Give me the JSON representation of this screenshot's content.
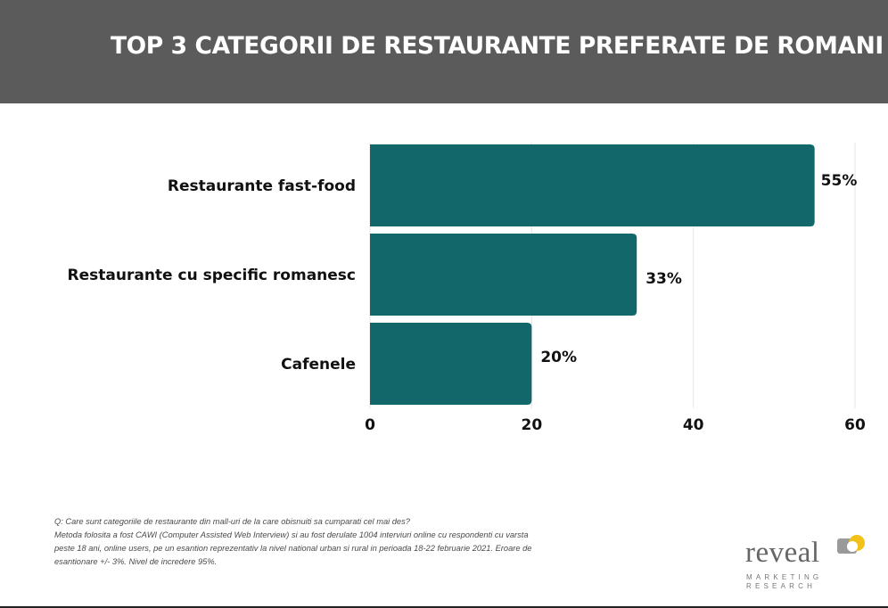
{
  "header": {
    "title": "TOP 3 CATEGORII DE RESTAURANTE PREFERATE DE ROMANI"
  },
  "chart_data": {
    "type": "bar",
    "orientation": "horizontal",
    "title": "TOP 3 CATEGORII DE RESTAURANTE PREFERATE DE ROMANI",
    "categories": [
      "Restaurante fast-food",
      "Restaurante cu specific romanesc",
      "Cafenele"
    ],
    "values": [
      55,
      33,
      20
    ],
    "data_labels": [
      "55%",
      "33%",
      "20%"
    ],
    "xlim": [
      0,
      60
    ],
    "xticks": [
      "0",
      "20",
      "40",
      "60"
    ],
    "xlabel": "",
    "ylabel": "",
    "grid": true,
    "bar_color": "#12676a"
  },
  "footnote": {
    "lines": [
      "Q: Care sunt categoriile de restaurante din mall-uri de la care obisnuiti sa cumparati cel mai des?",
      "Metoda folosita a fost CAWI (Computer Assisted Web Interview) si au fost derulate 1004 interviuri online cu respondenti cu varsta",
      "peste 18 ani, online users, pe un esantion reprezentativ la nivel national urban si rural in perioada 18-22 februarie 2021. Eroare de",
      "esantionare +/- 3%. Nivel de incredere 95%."
    ]
  },
  "logo": {
    "word": "reveal",
    "line1": "MARKETING",
    "line2": "RESEARCH",
    "accent": "#f2c21b"
  },
  "colors": {
    "header_bg": "#5b5b5b",
    "bar": "#12676a",
    "text": "#111111"
  }
}
